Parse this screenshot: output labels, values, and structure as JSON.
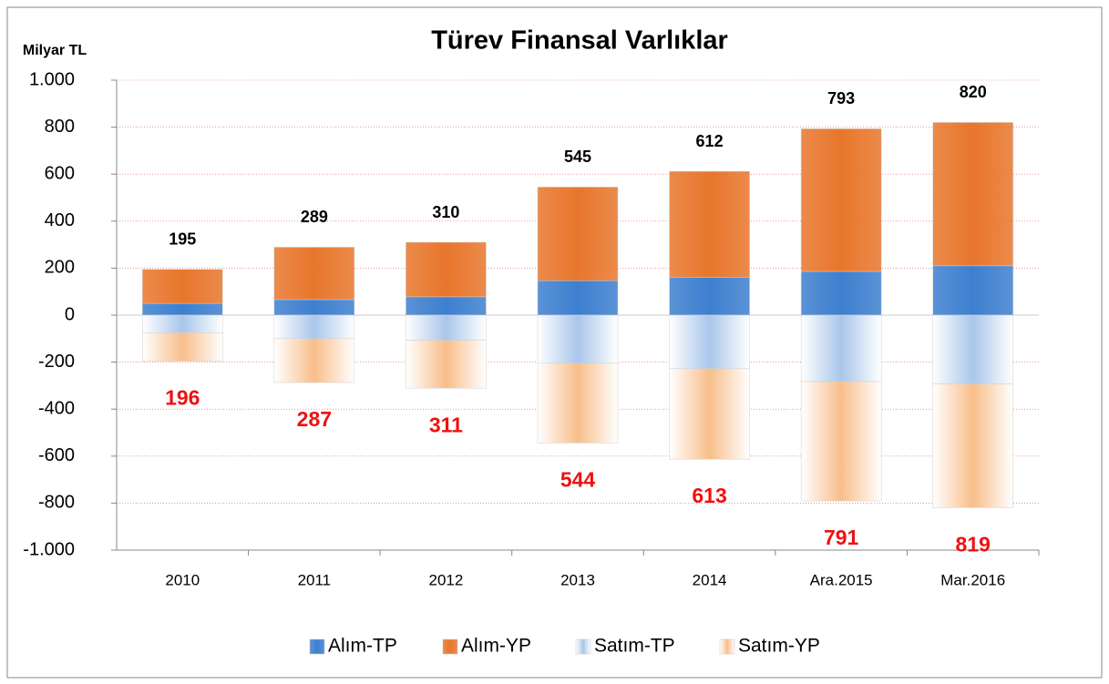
{
  "chart_data": {
    "type": "stacked-bar",
    "title": "Türev Finansal Varlıklar",
    "y_label": "Milyar TL",
    "categories": [
      "2010",
      "2011",
      "2012",
      "2013",
      "2014",
      "Ara.2015",
      "Mar.2016"
    ],
    "series": [
      {
        "name": "Alım-TP",
        "color": "#3d7fcf",
        "values": [
          50,
          66,
          78,
          147,
          160,
          186,
          210
        ]
      },
      {
        "name": "Alım-YP",
        "color": "#e8762c",
        "values": [
          145,
          223,
          232,
          398,
          452,
          607,
          610
        ]
      },
      {
        "name": "Satım-TP",
        "color": "#a9c6ea",
        "values": [
          -75,
          -100,
          -107,
          -205,
          -228,
          -283,
          -293
        ]
      },
      {
        "name": "Satım-YP",
        "color": "#f8be8a",
        "values": [
          -121,
          -187,
          -204,
          -339,
          -385,
          -508,
          -526
        ]
      }
    ],
    "positive_totals": [
      195,
      289,
      310,
      545,
      612,
      793,
      820
    ],
    "negative_totals": [
      196,
      287,
      311,
      544,
      613,
      791,
      819
    ],
    "ylim": [
      -1000,
      1000
    ],
    "yticks": [
      {
        "value": -1000,
        "label": "-1.000"
      },
      -800,
      -600,
      -400,
      -200,
      0,
      200,
      400,
      600,
      800,
      {
        "value": 1000,
        "label": "1.000"
      }
    ],
    "grid": true,
    "legend": "bottom"
  }
}
